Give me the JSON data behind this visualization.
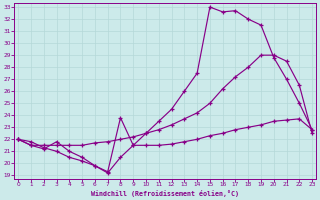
{
  "xlabel": "Windchill (Refroidissement éolien,°C)",
  "xlim": [
    0,
    23
  ],
  "ylim": [
    19,
    33
  ],
  "xticks": [
    0,
    1,
    2,
    3,
    4,
    5,
    6,
    7,
    8,
    9,
    10,
    11,
    12,
    13,
    14,
    15,
    16,
    17,
    18,
    19,
    20,
    21,
    22,
    23
  ],
  "yticks": [
    19,
    20,
    21,
    22,
    23,
    24,
    25,
    26,
    27,
    28,
    29,
    30,
    31,
    32,
    33
  ],
  "bg_color": "#cceaea",
  "line_color": "#880088",
  "grid_color": "#aadddd",
  "curve1_x": [
    0,
    1,
    2,
    3,
    4,
    5,
    6,
    7,
    8,
    9,
    10,
    11,
    12,
    13,
    14,
    15,
    16,
    17,
    18,
    19,
    20,
    21,
    22,
    23
  ],
  "curve1_y": [
    22,
    21.5,
    21.2,
    21.8,
    21.0,
    20.5,
    19.8,
    19.2,
    20.5,
    21.5,
    22.5,
    23.5,
    24.5,
    26.0,
    27.5,
    33.0,
    32.6,
    32.7,
    32.0,
    31.5,
    28.8,
    27.0,
    25.0,
    22.8
  ],
  "curve2_x": [
    0,
    1,
    2,
    3,
    4,
    5,
    6,
    7,
    8,
    9,
    10,
    11,
    12,
    13,
    14,
    15,
    16,
    17,
    18,
    19,
    20,
    21,
    22,
    23
  ],
  "curve2_y": [
    22,
    21.5,
    21.5,
    21.5,
    21.5,
    21.5,
    21.7,
    21.8,
    22.0,
    22.2,
    22.5,
    22.8,
    23.2,
    23.7,
    24.2,
    25.0,
    26.2,
    27.2,
    28.0,
    29.0,
    29.0,
    28.5,
    26.5,
    22.5
  ],
  "curve3_x": [
    0,
    1,
    2,
    3,
    4,
    5,
    6,
    7,
    8,
    9,
    10,
    11,
    12,
    13,
    14,
    15,
    16,
    17,
    18,
    19,
    20,
    21,
    22,
    23
  ],
  "curve3_y": [
    22,
    21.8,
    21.3,
    21.0,
    20.5,
    20.2,
    19.8,
    19.3,
    23.8,
    21.5,
    21.5,
    21.5,
    21.6,
    21.8,
    22.0,
    22.3,
    22.5,
    22.8,
    23.0,
    23.2,
    23.5,
    23.6,
    23.7,
    22.8
  ]
}
